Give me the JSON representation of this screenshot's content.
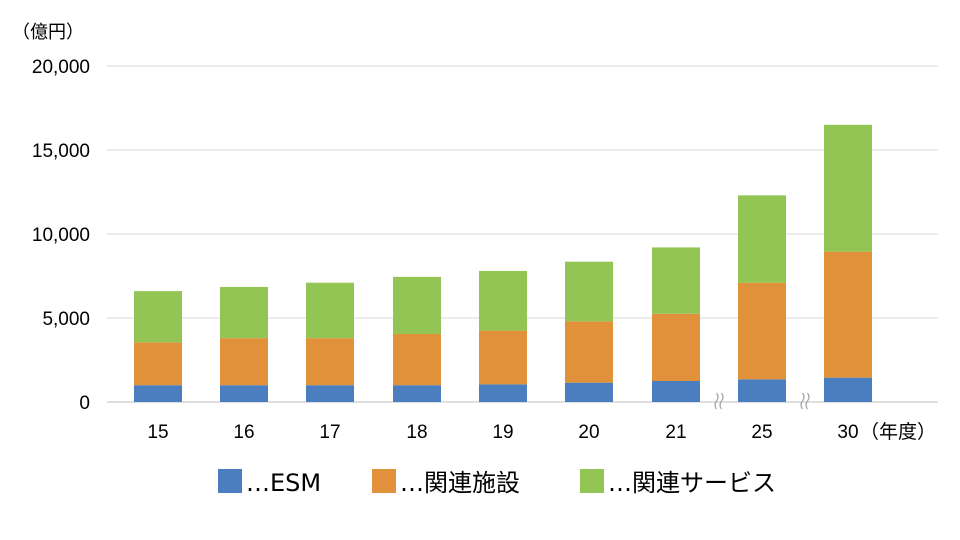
{
  "chart_data": {
    "type": "bar",
    "stacked": true,
    "categories": [
      "15",
      "16",
      "17",
      "18",
      "19",
      "20",
      "21",
      "25",
      "30"
    ],
    "series": [
      {
        "name": "…ESM",
        "color": "#4a7ebf",
        "values": [
          1000,
          1000,
          1000,
          1000,
          1050,
          1150,
          1250,
          1350,
          1450
        ]
      },
      {
        "name": "…関連施設",
        "color": "#e0913a",
        "values": [
          2550,
          2800,
          2800,
          3050,
          3200,
          3650,
          4000,
          5750,
          7500
        ]
      },
      {
        "name": "…関連サービス",
        "color": "#92c553",
        "values": [
          3050,
          3050,
          3300,
          3400,
          3550,
          3550,
          3950,
          5200,
          7550
        ]
      }
    ],
    "ylim": [
      0,
      20000
    ],
    "yticks": [
      "0",
      "5,000",
      "10,000",
      "15,000",
      "20,000"
    ],
    "ytick_values": [
      0,
      5000,
      10000,
      15000,
      20000
    ],
    "ylabel": "（億円）",
    "xlabel": "（年度）",
    "grid": true,
    "axis_breaks": [
      "between 21 and 25",
      "between 25 and 30"
    ],
    "legend_position": "bottom"
  }
}
